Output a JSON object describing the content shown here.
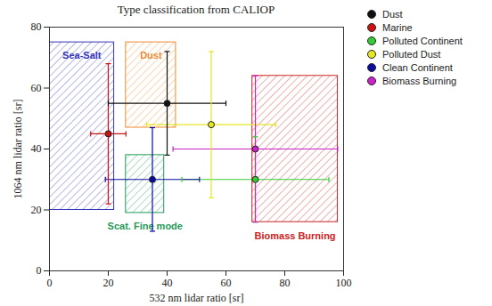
{
  "chart_data": {
    "type": "scatter",
    "title": "Type classification from CALIOP",
    "x_label": "532 nm lidar ratio [sr]",
    "y_label": "1064 nm lidar ratio [sr]",
    "xlim": [
      0,
      100
    ],
    "xticks": [
      0,
      20,
      40,
      60,
      80,
      100
    ],
    "ylim": [
      0,
      80
    ],
    "yticks": [
      0,
      20,
      40,
      60,
      80
    ],
    "legend": "right",
    "series": [
      {
        "name": "Dust",
        "color": "#111111",
        "x": [
          40
        ],
        "y": [
          55
        ],
        "xerr": [
          20
        ],
        "yerr": [
          17
        ]
      },
      {
        "name": "Marine",
        "color": "#cc1111",
        "x": [
          20
        ],
        "y": [
          45
        ],
        "xerr": [
          6
        ],
        "yerr": [
          23
        ]
      },
      {
        "name": "Polluted Continent",
        "color": "#33cc33",
        "x": [
          70
        ],
        "y": [
          30
        ],
        "xerr": [
          25
        ],
        "yerr": [
          14
        ]
      },
      {
        "name": "Polluted Dust",
        "color": "#e6e622",
        "x": [
          55
        ],
        "y": [
          48
        ],
        "xerr": [
          22
        ],
        "yerr": [
          24
        ]
      },
      {
        "name": "Clean Continent",
        "color": "#0a0aa0",
        "x": [
          35
        ],
        "y": [
          30
        ],
        "xerr": [
          16
        ],
        "yerr": [
          17
        ]
      },
      {
        "name": "Biomass Burning",
        "color": "#cc22cc",
        "x": [
          70
        ],
        "y": [
          40
        ],
        "xerr": [
          28
        ],
        "yerr": [
          24
        ]
      }
    ],
    "regions": [
      {
        "label": "Sea-Salt",
        "color": "#3333bb",
        "x": [
          0,
          22
        ],
        "y": [
          20,
          75
        ]
      },
      {
        "label": "Dust",
        "color": "#f08a30",
        "x": [
          26,
          43
        ],
        "y": [
          47,
          75
        ]
      },
      {
        "label": "Biomass Burning",
        "color": "#cc2222",
        "x": [
          69,
          98
        ],
        "y": [
          16,
          64
        ]
      },
      {
        "label": "Scat. Fine mode",
        "color": "#1f9a5a",
        "x": [
          26,
          39
        ],
        "y": [
          19,
          38
        ]
      }
    ]
  }
}
